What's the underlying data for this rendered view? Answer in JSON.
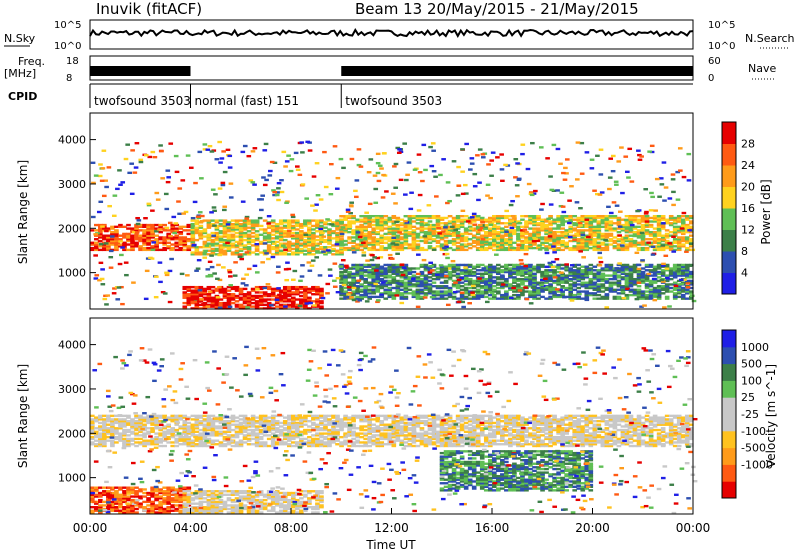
{
  "header": {
    "station": "Inuvik  (fitACF)",
    "beam_info": "Beam 13  20/May/2015 - 21/May/2015"
  },
  "top_panels": {
    "nsky_label": "N.Sky",
    "nsky_ticks": [
      "10^5",
      "10^0"
    ],
    "nsearch_label": "N.Search",
    "nsearch_ticks": [
      "10^5",
      "10^0"
    ],
    "freq_label": "Freq.",
    "freq_unit": "[MHz]",
    "freq_ticks": [
      "18",
      "8"
    ],
    "nave_label": "Nave",
    "nave_ticks": [
      "60",
      "0"
    ],
    "cpid_label": "CPID",
    "cpid_segments": [
      {
        "name": "twofsound 3503",
        "start": 0,
        "end": 4
      },
      {
        "name": "normal (fast) 151",
        "start": 4,
        "end": 10
      },
      {
        "name": "twofsound 3503",
        "start": 10,
        "end": 24
      }
    ]
  },
  "colors": {
    "power": [
      "#1f1fe6",
      "#2d4fb0",
      "#3c7f48",
      "#5fbf55",
      "#ffd21f",
      "#ff9b1a",
      "#ff5a12",
      "#e60000"
    ],
    "velocity": [
      "#e60000",
      "#ff5a12",
      "#ff9b1a",
      "#ffc21f",
      "#c8c8c8",
      "#c8c8c8",
      "#5fbf55",
      "#3c7f48",
      "#2d4fb0",
      "#1f1fe6"
    ]
  },
  "chart_data": [
    {
      "type": "heatmap",
      "name": "power",
      "xlabel": "Time UT",
      "ylabel": "Slant Range [km]",
      "colorbar_label": "Power [dB]",
      "colorbar_ticks": [
        "28",
        "24",
        "20",
        "16",
        "12",
        "8",
        "4"
      ],
      "x_range_hours": [
        0,
        24
      ],
      "y_range_km": [
        180,
        4600
      ],
      "y_ticks": [
        "4000",
        "3000",
        "2000",
        "1000"
      ],
      "regions": [
        {
          "t0": 0,
          "t1": 4,
          "r0": 1500,
          "r1": 2100,
          "level": 7
        },
        {
          "t0": 4,
          "t1": 10,
          "r0": 1400,
          "r1": 2200,
          "level": 5
        },
        {
          "t0": 10,
          "t1": 24,
          "r0": 1500,
          "r1": 2300,
          "level": 5
        },
        {
          "t0": 3.8,
          "t1": 9.2,
          "r0": 180,
          "r1": 700,
          "level": 8
        },
        {
          "t0": 10,
          "t1": 24,
          "r0": 400,
          "r1": 1200,
          "level": 3
        }
      ]
    },
    {
      "type": "heatmap",
      "name": "velocity",
      "xlabel": "Time UT",
      "ylabel": "Slant Range [km]",
      "colorbar_label": "Velocity [m s^-1]",
      "colorbar_ticks": [
        "1000",
        "500",
        "100",
        "25",
        "-25",
        "-100",
        "-500",
        "-1000"
      ],
      "x_range_hours": [
        0,
        24
      ],
      "y_range_km": [
        180,
        4600
      ],
      "y_ticks": [
        "4000",
        "3000",
        "2000",
        "1000"
      ],
      "x_ticks": [
        "00:00",
        "04:00",
        "08:00",
        "12:00",
        "16:00",
        "20:00",
        "00:00"
      ],
      "regions": [
        {
          "t0": 0,
          "t1": 24,
          "r0": 1700,
          "r1": 2400,
          "level": 5
        },
        {
          "t0": 14,
          "t1": 20,
          "r0": 700,
          "r1": 1600,
          "level": 8
        },
        {
          "t0": 0,
          "t1": 4,
          "r0": 200,
          "r1": 800,
          "level": 2
        },
        {
          "t0": 3.8,
          "t1": 9.2,
          "r0": 200,
          "r1": 700,
          "level": 5
        }
      ]
    }
  ]
}
